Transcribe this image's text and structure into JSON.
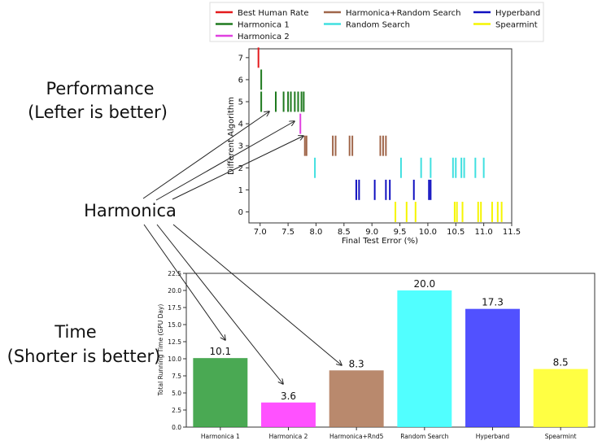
{
  "annotations": {
    "performance_title": "Performance",
    "performance_subtitle": "(Lefter is better)",
    "harmonica_label": "Harmonica",
    "time_title": "Time",
    "time_subtitle": "(Shorter is better)"
  },
  "colors": {
    "best_human": "#e41a1c",
    "harmonica1": "#1f7a1f",
    "harmonica2": "#e040e0",
    "harmonica_rs": "#a0664a",
    "random_search": "#40e0e0",
    "hyperband": "#1010c0",
    "spearmint": "#f5f500"
  },
  "chart_data": [
    {
      "type": "scatter",
      "marker": "vertical-line",
      "title": "",
      "xlabel": "Final Test Error (%)",
      "ylabel": "Different Algorithm",
      "xlim": [
        6.8,
        11.5
      ],
      "ylim": [
        -0.5,
        7.4
      ],
      "xticks": [
        7.0,
        7.5,
        8.0,
        8.5,
        9.0,
        9.5,
        10.0,
        10.5,
        11.0,
        11.5
      ],
      "yticks": [
        0,
        1,
        2,
        3,
        4,
        5,
        6,
        7
      ],
      "legend": [
        {
          "name": "Best Human Rate",
          "color": "#e41a1c"
        },
        {
          "name": "Harmonica+Random Search",
          "color": "#a0664a"
        },
        {
          "name": "Hyperband",
          "color": "#1010c0"
        },
        {
          "name": "Harmonica 1",
          "color": "#1f7a1f"
        },
        {
          "name": "Random Search",
          "color": "#40e0e0"
        },
        {
          "name": "Spearmint",
          "color": "#f5f500"
        },
        {
          "name": "Harmonica 2",
          "color": "#e040e0"
        }
      ],
      "series": [
        {
          "name": "Best Human Rate",
          "level": 7,
          "color": "#e41a1c",
          "x": [
            6.97
          ]
        },
        {
          "name": "Harmonica 1",
          "level": 6,
          "color": "#1f7a1f",
          "x": [
            7.02
          ]
        },
        {
          "name": "Harmonica 1",
          "level": 5,
          "color": "#1f7a1f",
          "x": [
            7.02,
            7.28,
            7.42,
            7.5,
            7.55,
            7.62,
            7.68,
            7.74,
            7.78
          ]
        },
        {
          "name": "Harmonica 2",
          "level": 4,
          "color": "#e040e0",
          "x": [
            7.72
          ]
        },
        {
          "name": "Harmonica+Random Search",
          "level": 3,
          "color": "#a0664a",
          "x": [
            7.8,
            7.83,
            8.3,
            8.35,
            8.6,
            8.65,
            9.15,
            9.2,
            9.25
          ]
        },
        {
          "name": "Random Search",
          "level": 2,
          "color": "#40e0e0",
          "x": [
            7.98,
            9.52,
            9.88,
            10.05,
            10.45,
            10.5,
            10.6,
            10.65,
            10.85,
            11.0
          ]
        },
        {
          "name": "Hyperband",
          "level": 1,
          "color": "#1010c0",
          "x": [
            8.72,
            8.77,
            9.05,
            9.25,
            9.32,
            9.75,
            10.02,
            10.05
          ]
        },
        {
          "name": "Spearmint",
          "level": 0,
          "color": "#f5f500",
          "x": [
            9.42,
            9.62,
            9.78,
            10.48,
            10.52,
            10.62,
            10.9,
            10.95,
            11.15,
            11.25,
            11.32
          ]
        }
      ]
    },
    {
      "type": "bar",
      "title": "",
      "xlabel": "",
      "ylabel": "Total Running Time (GPU Day)",
      "ylim": [
        0,
        22.5
      ],
      "yticks": [
        0.0,
        2.5,
        5.0,
        7.5,
        10.0,
        12.5,
        15.0,
        17.5,
        20.0,
        22.5
      ],
      "categories": [
        "Harmonica 1",
        "Harmonica 2",
        "Harmonica+Rnd5",
        "Random Search",
        "Hyperband",
        "Spearmint"
      ],
      "values": [
        10.1,
        3.6,
        8.3,
        20.0,
        17.3,
        8.5
      ],
      "value_labels": [
        "10.1",
        "3.6",
        "8.3",
        "20.0",
        "17.3",
        "8.5"
      ],
      "colors": [
        "#2a9a35",
        "#ff33ff",
        "#ad7453",
        "#33ffff",
        "#3333ff",
        "#ffff22"
      ]
    }
  ]
}
